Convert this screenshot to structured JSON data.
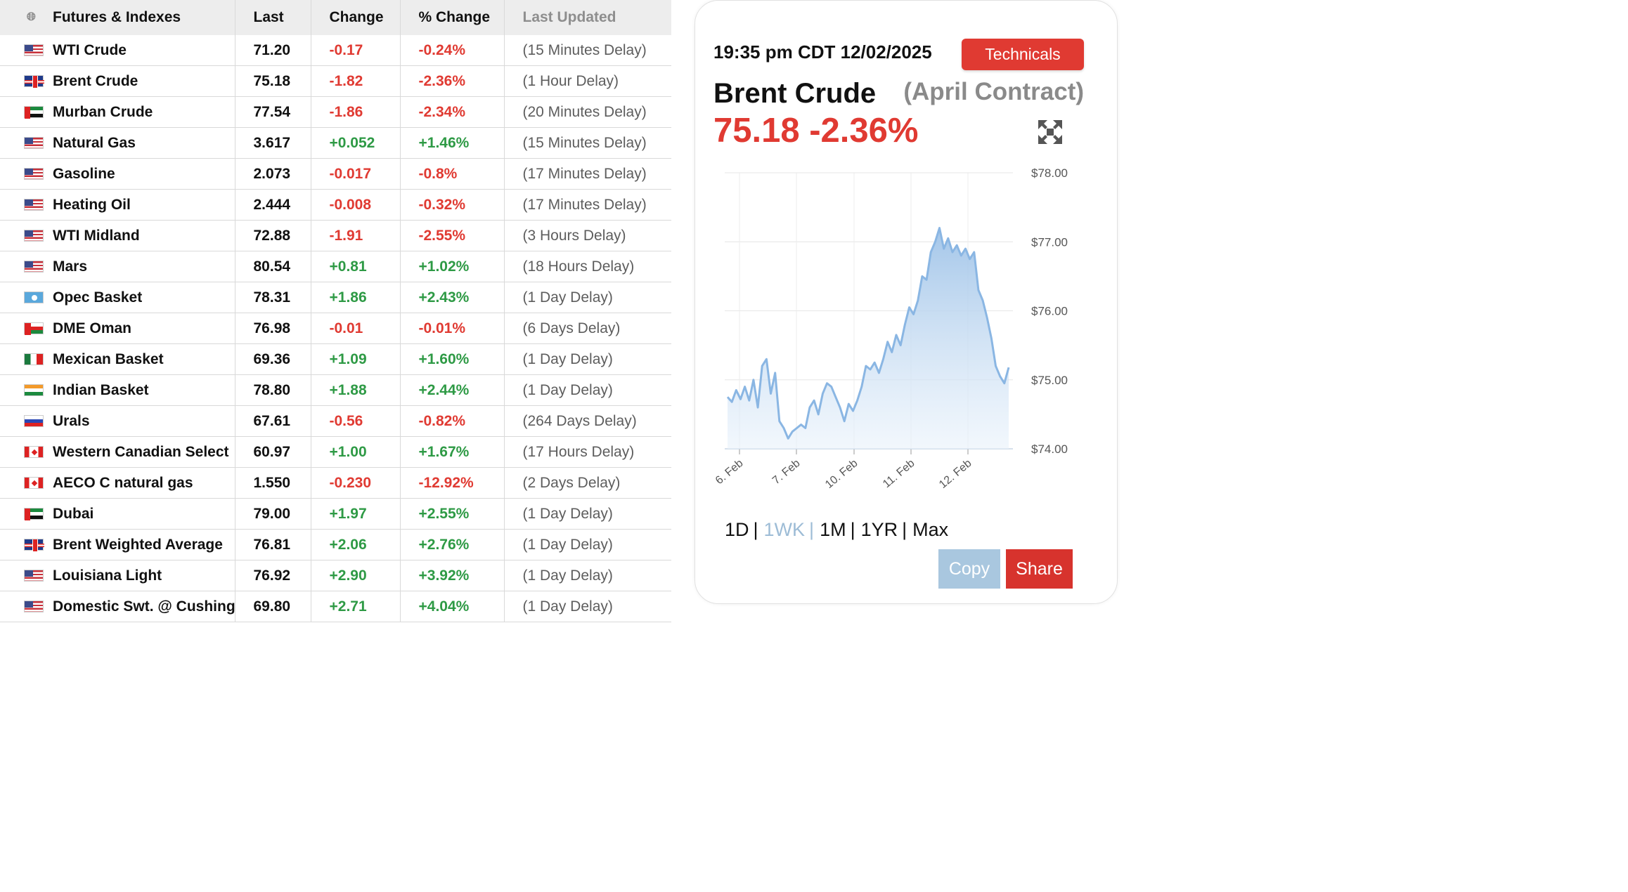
{
  "table": {
    "headers": {
      "name": "Futures & Indexes",
      "last": "Last",
      "change": "Change",
      "pct_change": "% Change",
      "updated": "Last Updated"
    },
    "rows": [
      {
        "flag": "us",
        "name": "WTI Crude",
        "last": "71.20",
        "change": "-0.17",
        "pct": "-0.24%",
        "updated": "(15 Minutes Delay)",
        "dir": "neg"
      },
      {
        "flag": "uk",
        "name": "Brent Crude",
        "last": "75.18",
        "change": "-1.82",
        "pct": "-2.36%",
        "updated": "(1 Hour Delay)",
        "dir": "neg"
      },
      {
        "flag": "ae",
        "name": "Murban Crude",
        "last": "77.54",
        "change": "-1.86",
        "pct": "-2.34%",
        "updated": "(20 Minutes Delay)",
        "dir": "neg"
      },
      {
        "flag": "us",
        "name": "Natural Gas",
        "last": "3.617",
        "change": "+0.052",
        "pct": "+1.46%",
        "updated": "(15 Minutes Delay)",
        "dir": "pos"
      },
      {
        "flag": "us",
        "name": "Gasoline",
        "last": "2.073",
        "change": "-0.017",
        "pct": "-0.8%",
        "updated": "(17 Minutes Delay)",
        "dir": "neg"
      },
      {
        "flag": "us",
        "name": "Heating Oil",
        "last": "2.444",
        "change": "-0.008",
        "pct": "-0.32%",
        "updated": "(17 Minutes Delay)",
        "dir": "neg"
      },
      {
        "flag": "us",
        "name": "WTI Midland",
        "last": "72.88",
        "change": "-1.91",
        "pct": "-2.55%",
        "updated": "(3 Hours Delay)",
        "dir": "neg"
      },
      {
        "flag": "us",
        "name": "Mars",
        "last": "80.54",
        "change": "+0.81",
        "pct": "+1.02%",
        "updated": "(18 Hours Delay)",
        "dir": "pos"
      },
      {
        "flag": "opec",
        "name": "Opec Basket",
        "last": "78.31",
        "change": "+1.86",
        "pct": "+2.43%",
        "updated": "(1 Day Delay)",
        "dir": "pos"
      },
      {
        "flag": "om",
        "name": "DME Oman",
        "last": "76.98",
        "change": "-0.01",
        "pct": "-0.01%",
        "updated": "(6 Days Delay)",
        "dir": "neg"
      },
      {
        "flag": "mx",
        "name": "Mexican Basket",
        "last": "69.36",
        "change": "+1.09",
        "pct": "+1.60%",
        "updated": "(1 Day Delay)",
        "dir": "pos"
      },
      {
        "flag": "in",
        "name": "Indian Basket",
        "last": "78.80",
        "change": "+1.88",
        "pct": "+2.44%",
        "updated": "(1 Day Delay)",
        "dir": "pos"
      },
      {
        "flag": "ru",
        "name": "Urals",
        "last": "67.61",
        "change": "-0.56",
        "pct": "-0.82%",
        "updated": "(264 Days Delay)",
        "dir": "neg"
      },
      {
        "flag": "ca",
        "name": "Western Canadian Select",
        "last": "60.97",
        "change": "+1.00",
        "pct": "+1.67%",
        "updated": "(17 Hours Delay)",
        "dir": "pos"
      },
      {
        "flag": "ca",
        "name": "AECO C natural gas",
        "last": "1.550",
        "change": "-0.230",
        "pct": "-12.92%",
        "updated": "(2 Days Delay)",
        "dir": "neg"
      },
      {
        "flag": "ae",
        "name": "Dubai",
        "last": "79.00",
        "change": "+1.97",
        "pct": "+2.55%",
        "updated": "(1 Day Delay)",
        "dir": "pos"
      },
      {
        "flag": "uk",
        "name": "Brent Weighted Average",
        "last": "76.81",
        "change": "+2.06",
        "pct": "+2.76%",
        "updated": "(1 Day Delay)",
        "dir": "pos"
      },
      {
        "flag": "us",
        "name": "Louisiana Light",
        "last": "76.92",
        "change": "+2.90",
        "pct": "+3.92%",
        "updated": "(1 Day Delay)",
        "dir": "pos"
      },
      {
        "flag": "us",
        "name": "Domestic Swt. @ Cushing",
        "last": "69.80",
        "change": "+2.71",
        "pct": "+4.04%",
        "updated": "(1 Day Delay)",
        "dir": "pos"
      }
    ]
  },
  "card": {
    "timestamp": "19:35 pm CDT 12/02/2025",
    "technicals_label": "Technicals",
    "instrument": "Brent Crude",
    "contract": "(April Contract)",
    "price_line": "75.18 -2.36%",
    "ranges": [
      {
        "label": "1D",
        "active": false
      },
      {
        "label": "1WK",
        "active": true
      },
      {
        "label": "1M",
        "active": false
      },
      {
        "label": "1YR",
        "active": false
      },
      {
        "label": "Max",
        "active": false
      }
    ],
    "separator": "|",
    "copy_label": "Copy",
    "share_label": "Share"
  },
  "colors": {
    "negative": "#e03a32",
    "positive": "#2e9a45",
    "accent_red": "#e03a32",
    "line": "#8ab6e3",
    "copy_button": "#a9c7df"
  },
  "chart_data": {
    "type": "area",
    "title": "",
    "ylim": [
      74.0,
      78.0
    ],
    "y_ticks": [
      "$78.00",
      "$77.00",
      "$76.00",
      "$75.00",
      "$74.00"
    ],
    "y_tick_values": [
      78,
      77,
      76,
      75,
      74
    ],
    "x_ticks": [
      "6. Feb",
      "7. Feb",
      "10. Feb",
      "11. Feb",
      "12. Feb"
    ],
    "series": [
      {
        "values": [
          74.75,
          74.68,
          74.85,
          74.72,
          74.9,
          74.7,
          75.0,
          74.6,
          75.2,
          75.3,
          74.8,
          75.1,
          74.4,
          74.3,
          74.15,
          74.25,
          74.3,
          74.35,
          74.3,
          74.6,
          74.7,
          74.5,
          74.8,
          74.95,
          74.9,
          74.75,
          74.6,
          74.4,
          74.65,
          74.55,
          74.7,
          74.9,
          75.2,
          75.15,
          75.25,
          75.1,
          75.3,
          75.55,
          75.4,
          75.65,
          75.5,
          75.8,
          76.05,
          75.95,
          76.15,
          76.5,
          76.45,
          76.85,
          77.0,
          77.2,
          76.9,
          77.05,
          76.85,
          76.95,
          76.8,
          76.9,
          76.75,
          76.85,
          76.3,
          76.15,
          75.9,
          75.6,
          75.2,
          75.05,
          74.95,
          75.18
        ]
      }
    ],
    "grid": true,
    "legend": "none"
  }
}
